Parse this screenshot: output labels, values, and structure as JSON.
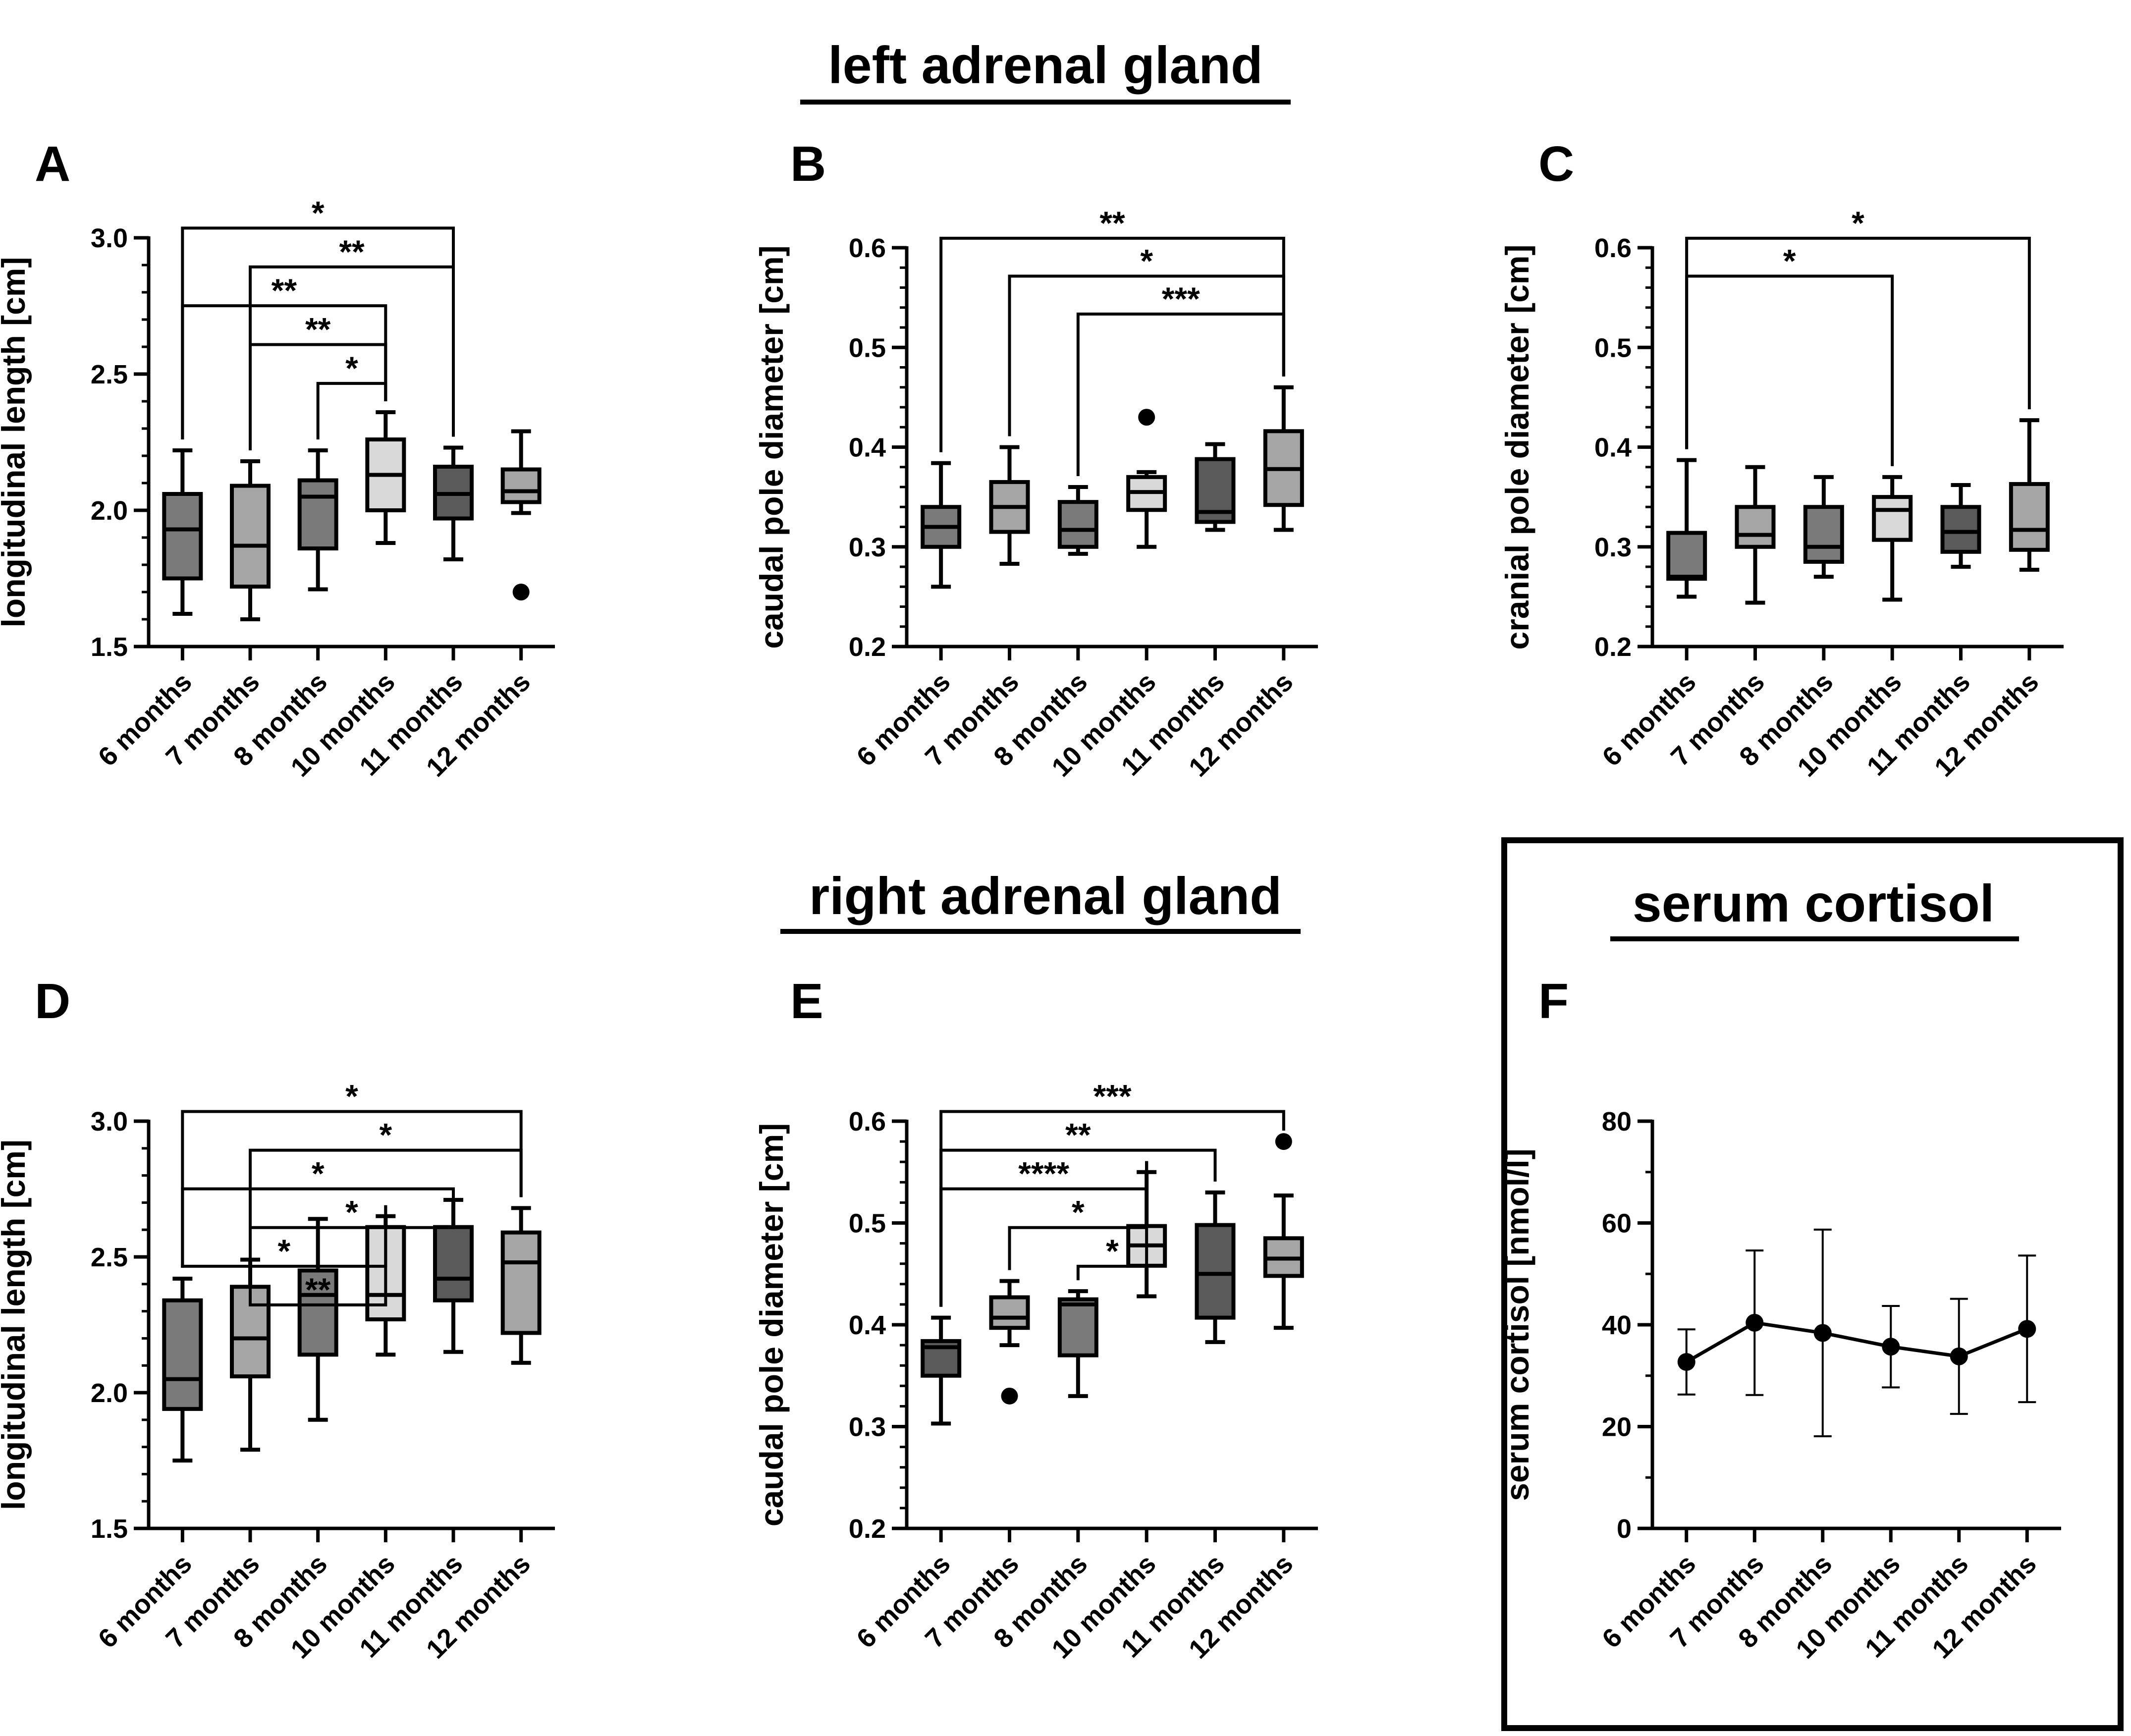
{
  "headings": {
    "left": "left adrenal gland",
    "right": "right adrenal gland",
    "cortisol": "serum cortisol"
  },
  "chart_data": [
    {
      "id": "A",
      "panel_label": "A",
      "type": "box",
      "ylabel": "longitudinal length [cm]",
      "ylim": [
        1.5,
        3.0
      ],
      "yticks": [
        1.5,
        2.0,
        2.5,
        3.0
      ],
      "minor": 0.1,
      "tick_decimals": 1,
      "categories": [
        "6 months",
        "7 months",
        "8 months",
        "10 months",
        "11 months",
        "12 months"
      ],
      "colors": [
        "#7a7a7a",
        "#a5a5a5",
        "#7a7a7a",
        "#d9d9d9",
        "#5a5a5a",
        "#a5a5a5"
      ],
      "boxes": [
        {
          "min": 1.62,
          "q1": 1.75,
          "median": 1.93,
          "q3": 2.06,
          "max": 2.22,
          "outliers": []
        },
        {
          "min": 1.6,
          "q1": 1.72,
          "median": 1.87,
          "q3": 2.09,
          "max": 2.18,
          "outliers": []
        },
        {
          "min": 1.71,
          "q1": 1.86,
          "median": 2.05,
          "q3": 2.11,
          "max": 2.22,
          "outliers": []
        },
        {
          "min": 1.88,
          "q1": 2.0,
          "median": 2.13,
          "q3": 2.26,
          "max": 2.36,
          "outliers": []
        },
        {
          "min": 1.82,
          "q1": 1.97,
          "median": 2.06,
          "q3": 2.16,
          "max": 2.23,
          "outliers": []
        },
        {
          "min": 1.99,
          "q1": 2.03,
          "median": 2.07,
          "q3": 2.15,
          "max": 2.29,
          "outliers": [
            1.7
          ]
        }
      ],
      "brackets": [
        {
          "from": 0,
          "to": 4,
          "label": "*"
        },
        {
          "from": 1,
          "to": 4,
          "label": "**"
        },
        {
          "from": 0,
          "to": 3,
          "label": "**"
        },
        {
          "from": 1,
          "to": 3,
          "label": "**"
        },
        {
          "from": 2,
          "to": 3,
          "label": "*"
        }
      ]
    },
    {
      "id": "B",
      "panel_label": "B",
      "type": "box",
      "ylabel": "caudal pole diameter [cm]",
      "ylim": [
        0.2,
        0.6
      ],
      "yticks": [
        0.2,
        0.3,
        0.4,
        0.5,
        0.6
      ],
      "minor": 0.02,
      "tick_decimals": 1,
      "categories": [
        "6 months",
        "7 months",
        "8 months",
        "10 months",
        "11 months",
        "12 months"
      ],
      "colors": [
        "#7a7a7a",
        "#a5a5a5",
        "#7a7a7a",
        "#d9d9d9",
        "#5a5a5a",
        "#a5a5a5"
      ],
      "boxes": [
        {
          "min": 0.26,
          "q1": 0.3,
          "median": 0.32,
          "q3": 0.34,
          "max": 0.384,
          "outliers": []
        },
        {
          "min": 0.283,
          "q1": 0.315,
          "median": 0.34,
          "q3": 0.365,
          "max": 0.4,
          "outliers": []
        },
        {
          "min": 0.293,
          "q1": 0.3,
          "median": 0.317,
          "q3": 0.345,
          "max": 0.36,
          "outliers": []
        },
        {
          "min": 0.3,
          "q1": 0.337,
          "median": 0.355,
          "q3": 0.37,
          "max": 0.375,
          "outliers": [
            0.43
          ]
        },
        {
          "min": 0.317,
          "q1": 0.325,
          "median": 0.335,
          "q3": 0.388,
          "max": 0.403,
          "outliers": []
        },
        {
          "min": 0.317,
          "q1": 0.342,
          "median": 0.378,
          "q3": 0.416,
          "max": 0.46,
          "outliers": []
        }
      ],
      "brackets": [
        {
          "from": 0,
          "to": 5,
          "label": "**"
        },
        {
          "from": 1,
          "to": 5,
          "label": "*"
        },
        {
          "from": 2,
          "to": 5,
          "label": "***"
        }
      ]
    },
    {
      "id": "C",
      "panel_label": "C",
      "type": "box",
      "ylabel": "cranial pole diameter [cm]",
      "ylim": [
        0.2,
        0.6
      ],
      "yticks": [
        0.2,
        0.3,
        0.4,
        0.5,
        0.6
      ],
      "minor": 0.02,
      "tick_decimals": 1,
      "categories": [
        "6 months",
        "7 months",
        "8 months",
        "10 months",
        "11 months",
        "12 months"
      ],
      "colors": [
        "#7a7a7a",
        "#a5a5a5",
        "#7a7a7a",
        "#d9d9d9",
        "#5a5a5a",
        "#a5a5a5"
      ],
      "boxes": [
        {
          "min": 0.25,
          "q1": 0.268,
          "median": 0.27,
          "q3": 0.314,
          "max": 0.387,
          "outliers": []
        },
        {
          "min": 0.244,
          "q1": 0.3,
          "median": 0.312,
          "q3": 0.34,
          "max": 0.38,
          "outliers": []
        },
        {
          "min": 0.27,
          "q1": 0.285,
          "median": 0.3,
          "q3": 0.34,
          "max": 0.37,
          "outliers": []
        },
        {
          "min": 0.247,
          "q1": 0.307,
          "median": 0.337,
          "q3": 0.35,
          "max": 0.37,
          "outliers": []
        },
        {
          "min": 0.28,
          "q1": 0.295,
          "median": 0.315,
          "q3": 0.34,
          "max": 0.362,
          "outliers": []
        },
        {
          "min": 0.277,
          "q1": 0.297,
          "median": 0.317,
          "q3": 0.363,
          "max": 0.427,
          "outliers": []
        }
      ],
      "brackets": [
        {
          "from": 0,
          "to": 5,
          "label": "*"
        },
        {
          "from": 0,
          "to": 3,
          "label": "*"
        }
      ]
    },
    {
      "id": "D",
      "panel_label": "D",
      "type": "box",
      "ylabel": "longitudinal length [cm]",
      "ylim": [
        1.5,
        3.0
      ],
      "yticks": [
        1.5,
        2.0,
        2.5,
        3.0
      ],
      "minor": 0.1,
      "tick_decimals": 1,
      "categories": [
        "6 months",
        "7 months",
        "8 months",
        "10 months",
        "11 months",
        "12 months"
      ],
      "colors": [
        "#7a7a7a",
        "#a5a5a5",
        "#7a7a7a",
        "#d9d9d9",
        "#5a5a5a",
        "#a5a5a5"
      ],
      "boxes": [
        {
          "min": 1.75,
          "q1": 1.94,
          "median": 2.05,
          "q3": 2.34,
          "max": 2.42,
          "outliers": []
        },
        {
          "min": 1.79,
          "q1": 2.06,
          "median": 2.2,
          "q3": 2.39,
          "max": 2.49,
          "outliers": []
        },
        {
          "min": 1.9,
          "q1": 2.14,
          "median": 2.36,
          "q3": 2.45,
          "max": 2.64,
          "outliers": []
        },
        {
          "min": 2.14,
          "q1": 2.27,
          "median": 2.36,
          "q3": 2.61,
          "max": 2.65,
          "outliers": []
        },
        {
          "min": 2.15,
          "q1": 2.34,
          "median": 2.42,
          "q3": 2.61,
          "max": 2.71,
          "outliers": []
        },
        {
          "min": 2.11,
          "q1": 2.22,
          "median": 2.48,
          "q3": 2.59,
          "max": 2.68,
          "outliers": []
        }
      ],
      "brackets": [
        {
          "from": 0,
          "to": 5,
          "label": "*"
        },
        {
          "from": 1,
          "to": 5,
          "label": "*"
        },
        {
          "from": 0,
          "to": 4,
          "label": "*"
        },
        {
          "from": 1,
          "to": 4,
          "label": "*"
        },
        {
          "from": 0,
          "to": 3,
          "label": "*"
        },
        {
          "from": 1,
          "to": 3,
          "label": "**"
        }
      ]
    },
    {
      "id": "E",
      "panel_label": "E",
      "type": "box",
      "ylabel": "caudal pole diameter [cm]",
      "ylim": [
        0.2,
        0.6
      ],
      "yticks": [
        0.2,
        0.3,
        0.4,
        0.5,
        0.6
      ],
      "minor": 0.02,
      "tick_decimals": 1,
      "categories": [
        "6 months",
        "7 months",
        "8 months",
        "10 months",
        "11 months",
        "12 months"
      ],
      "colors": [
        "#5a5a5a",
        "#a5a5a5",
        "#7a7a7a",
        "#d9d9d9",
        "#5a5a5a",
        "#a5a5a5"
      ],
      "boxes": [
        {
          "min": 0.303,
          "q1": 0.35,
          "median": 0.378,
          "q3": 0.384,
          "max": 0.407,
          "outliers": []
        },
        {
          "min": 0.38,
          "q1": 0.397,
          "median": 0.407,
          "q3": 0.427,
          "max": 0.443,
          "outliers": [
            0.33
          ]
        },
        {
          "min": 0.33,
          "q1": 0.37,
          "median": 0.42,
          "q3": 0.425,
          "max": 0.433,
          "outliers": []
        },
        {
          "min": 0.428,
          "q1": 0.458,
          "median": 0.478,
          "q3": 0.497,
          "max": 0.55,
          "outliers": []
        },
        {
          "min": 0.383,
          "q1": 0.407,
          "median": 0.45,
          "q3": 0.498,
          "max": 0.53,
          "outliers": []
        },
        {
          "min": 0.397,
          "q1": 0.448,
          "median": 0.465,
          "q3": 0.485,
          "max": 0.527,
          "outliers": [
            0.58
          ]
        }
      ],
      "brackets": [
        {
          "from": 0,
          "to": 5,
          "label": "***"
        },
        {
          "from": 0,
          "to": 4,
          "label": "**"
        },
        {
          "from": 0,
          "to": 3,
          "label": "****"
        },
        {
          "from": 1,
          "to": 3,
          "label": "*"
        },
        {
          "from": 2,
          "to": 3,
          "label": "*"
        }
      ]
    },
    {
      "id": "F",
      "panel_label": "F",
      "type": "line",
      "ylabel": "serum cortisol [nmol/l]",
      "ylim": [
        0,
        80
      ],
      "yticks": [
        0,
        20,
        40,
        60,
        80
      ],
      "minor": 10,
      "tick_decimals": 0,
      "categories": [
        "6 months",
        "7 months",
        "8 months",
        "10 months",
        "11 months",
        "12 months"
      ],
      "series": [
        {
          "name": "serum cortisol",
          "values": [
            32.7,
            40.4,
            38.4,
            35.7,
            33.8,
            39.2
          ],
          "err_low": [
            26.3,
            26.2,
            18.1,
            27.7,
            22.5,
            24.8
          ],
          "err_high": [
            39.1,
            54.6,
            58.7,
            43.7,
            45.1,
            53.6
          ]
        }
      ]
    }
  ]
}
